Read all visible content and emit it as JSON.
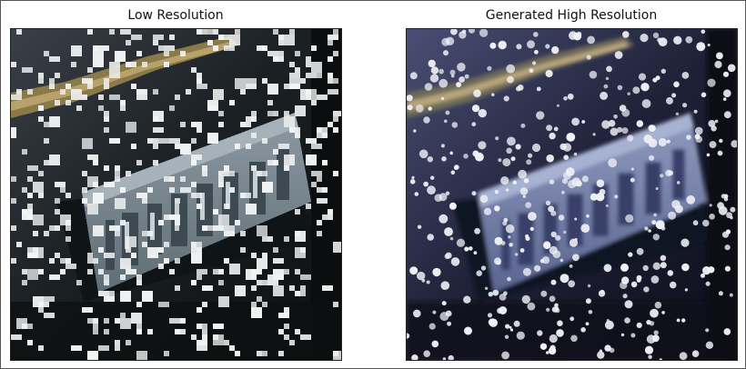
{
  "figure": {
    "panels": [
      {
        "title": "Low Resolution"
      },
      {
        "title": "Generated High Resolution"
      }
    ]
  }
}
